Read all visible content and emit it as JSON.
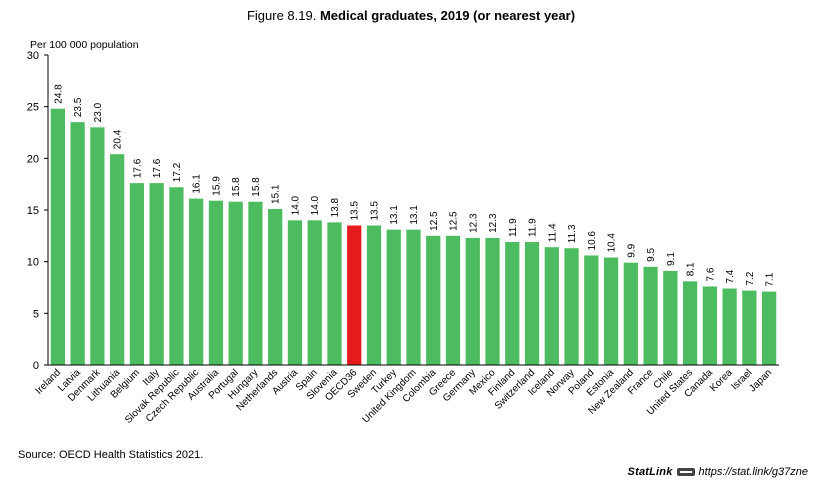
{
  "figure": {
    "prefix": "Figure 8.19.",
    "title": "Medical graduates, 2019 (or nearest year)",
    "source": "Source: OECD Health Statistics 2021.",
    "statlink_brand": "StatLink",
    "statlink_url": "https://stat.link/g37zne"
  },
  "colors": {
    "bar": "#4dbb5f",
    "highlight": "#e41a1c",
    "axis": "#000000"
  },
  "chart_data": {
    "type": "bar",
    "title": "Medical graduates, 2019 (or nearest year)",
    "ylabel": "Per 100 000 population",
    "xlabel": "",
    "ylim": [
      0,
      30
    ],
    "yticks": [
      0,
      5,
      10,
      15,
      20,
      25,
      30
    ],
    "grid": false,
    "highlight": "OECD36",
    "categories": [
      "Ireland",
      "Latvia",
      "Denmark",
      "Lithuania",
      "Belgium",
      "Italy",
      "Slovak Republic",
      "Czech Republic",
      "Australia",
      "Portugal",
      "Hungary",
      "Netherlands",
      "Austria",
      "Spain",
      "Slovenia",
      "OECD36",
      "Sweden",
      "Turkey",
      "United Kingdom",
      "Colombia",
      "Greece",
      "Germany",
      "Mexico",
      "Finland",
      "Switzerland",
      "Iceland",
      "Norway",
      "Poland",
      "Estonia",
      "New Zealand",
      "France",
      "Chile",
      "United States",
      "Canada",
      "Korea",
      "Israel",
      "Japan"
    ],
    "values": [
      24.8,
      23.5,
      23.0,
      20.4,
      17.6,
      17.6,
      17.2,
      16.1,
      15.9,
      15.8,
      15.8,
      15.1,
      14.0,
      14.0,
      13.8,
      13.5,
      13.5,
      13.1,
      13.1,
      12.5,
      12.5,
      12.3,
      12.3,
      11.9,
      11.9,
      11.4,
      11.3,
      10.6,
      10.4,
      9.9,
      9.5,
      9.1,
      8.1,
      7.6,
      7.4,
      7.2,
      7.1
    ],
    "value_labels": [
      "24.8",
      "23.5",
      "23.0",
      "20.4",
      "17.6",
      "17.6",
      "17.2",
      "16.1",
      "15.9",
      "15.8",
      "15.8",
      "15.1",
      "14.0",
      "14.0",
      "13.8",
      "13.5",
      "13.5",
      "13.1",
      "13.1",
      "12.5",
      "12.5",
      "12.3",
      "12.3",
      "11.9",
      "11.9",
      "11.4",
      "11.3",
      "10.6",
      "10.4",
      "9.9",
      "9.5",
      "9.1",
      "8.1",
      "7.6",
      "7.4",
      "7.2",
      "7.1"
    ]
  }
}
